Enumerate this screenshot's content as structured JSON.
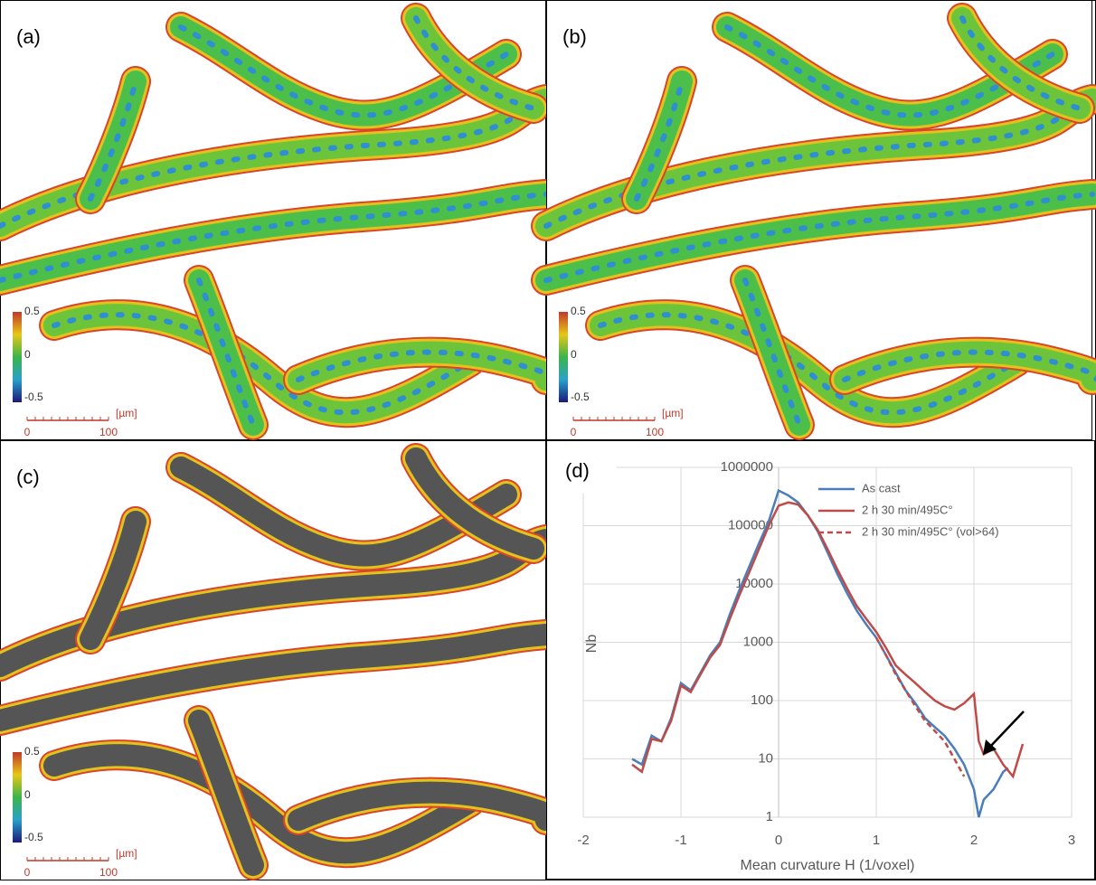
{
  "panels": [
    {
      "label": "(a)",
      "colorbar_labels": [
        "0.5",
        "0",
        "-0.5"
      ],
      "scale_unit": "[µm]",
      "scale_ticks": [
        "0",
        "100"
      ]
    },
    {
      "label": "(b)",
      "colorbar_labels": [
        "0.5",
        "0",
        "-0.5"
      ],
      "scale_unit": "[µm]",
      "scale_ticks": [
        "0",
        "100"
      ]
    },
    {
      "label": "(c)",
      "colorbar_labels": [
        "0.5",
        "0",
        "-0.5"
      ],
      "scale_unit": "[µm]",
      "scale_ticks": [
        "0",
        "100"
      ]
    }
  ],
  "chart_data": {
    "type": "line",
    "panel_label": "(d)",
    "x_label": "Mean curvature H (1/voxel)",
    "y_label": "Nb",
    "xlim": [
      -2,
      3
    ],
    "xticks": [
      -2,
      -1,
      0,
      1,
      2,
      3
    ],
    "ylim": [
      1,
      1000000
    ],
    "yticks": [
      1,
      10,
      100,
      1000,
      10000,
      100000,
      1000000
    ],
    "log_y": true,
    "grid": true,
    "legend": "upper-right",
    "series": [
      {
        "name": "As cast",
        "color": "#4a7ebb",
        "dash": false,
        "x": [
          -1.5,
          -1.4,
          -1.3,
          -1.2,
          -1.1,
          -1.0,
          -0.9,
          -0.8,
          -0.7,
          -0.6,
          -0.5,
          -0.4,
          -0.3,
          -0.2,
          -0.1,
          0,
          0.1,
          0.2,
          0.3,
          0.4,
          0.5,
          0.6,
          0.7,
          0.8,
          0.9,
          1.0,
          1.1,
          1.2,
          1.3,
          1.4,
          1.5,
          1.6,
          1.7,
          1.8,
          1.9,
          2.0,
          2.05,
          2.1,
          2.2,
          2.3,
          2.35
        ],
        "values": [
          10,
          8,
          25,
          20,
          50,
          200,
          150,
          300,
          600,
          1000,
          3000,
          8000,
          20000,
          50000,
          120000,
          400000,
          330000,
          250000,
          150000,
          80000,
          35000,
          15000,
          7000,
          3500,
          2000,
          1200,
          600,
          300,
          150,
          90,
          50,
          35,
          25,
          15,
          8,
          3,
          1,
          2,
          3,
          6,
          7
        ]
      },
      {
        "name": "2 h 30 min/495C°",
        "color": "#be4b48",
        "dash": false,
        "x": [
          -1.5,
          -1.4,
          -1.3,
          -1.2,
          -1.1,
          -1.0,
          -0.9,
          -0.8,
          -0.7,
          -0.6,
          -0.5,
          -0.4,
          -0.3,
          -0.2,
          -0.1,
          0,
          0.1,
          0.2,
          0.3,
          0.4,
          0.5,
          0.6,
          0.7,
          0.8,
          0.9,
          1.0,
          1.1,
          1.2,
          1.3,
          1.4,
          1.5,
          1.6,
          1.7,
          1.8,
          1.9,
          2.0,
          2.05,
          2.1,
          2.2,
          2.3,
          2.4,
          2.5
        ],
        "values": [
          8,
          6,
          22,
          20,
          45,
          180,
          140,
          280,
          550,
          900,
          2500,
          6500,
          16000,
          40000,
          100000,
          220000,
          250000,
          230000,
          150000,
          85000,
          40000,
          18000,
          8500,
          4200,
          2500,
          1500,
          800,
          400,
          280,
          200,
          140,
          100,
          80,
          70,
          90,
          130,
          20,
          12,
          15,
          8,
          5,
          18
        ]
      },
      {
        "name": "2 h 30 min/495C° (vol>64)",
        "color": "#be4b48",
        "dash": true,
        "x": [
          1.0,
          1.1,
          1.2,
          1.3,
          1.4,
          1.5,
          1.6,
          1.7,
          1.8,
          1.9
        ],
        "values": [
          1200,
          600,
          280,
          150,
          80,
          45,
          30,
          20,
          10,
          5
        ]
      }
    ]
  }
}
